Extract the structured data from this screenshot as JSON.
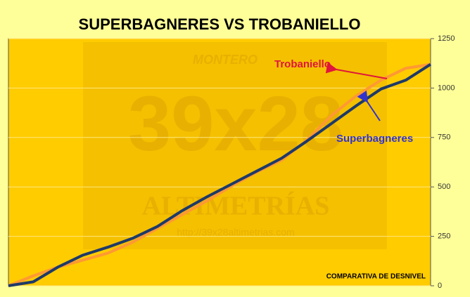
{
  "chart_data": {
    "type": "line",
    "title": "SUPERBAGNERES VS TROBANIELLO",
    "categories": [
      null,
      null,
      null,
      null,
      null,
      null,
      null,
      null,
      null,
      null,
      null,
      null,
      null,
      null,
      null,
      null,
      null,
      null
    ],
    "series": [
      {
        "name": "Superbagneres",
        "color": "#1f3a68",
        "values": [
          0,
          20,
          95,
          155,
          195,
          240,
          300,
          380,
          450,
          515,
          580,
          645,
          730,
          820,
          910,
          995,
          1040,
          1120
        ]
      },
      {
        "name": "Trobaniello",
        "color": "#ff9933",
        "values": [
          0,
          50,
          95,
          130,
          165,
          220,
          290,
          360,
          430,
          505,
          575,
          635,
          735,
          860,
          960,
          1040,
          1100,
          1120
        ]
      }
    ],
    "ylim": [
      0,
      1250
    ],
    "yticks": [
      0,
      250,
      500,
      750,
      1000,
      1250
    ],
    "grid": true,
    "annotations": [
      {
        "text": "Trobaniello",
        "color": "#e0143c"
      },
      {
        "text": "Superbagneres",
        "color": "#3333cc"
      },
      {
        "text": "COMPARATIVA DE DESNIVEL",
        "color": "#000000"
      }
    ],
    "watermark": [
      "MONTERO",
      "39x28",
      "ALTIMETRÍAS",
      "http://39x28altimetrias.com"
    ]
  }
}
